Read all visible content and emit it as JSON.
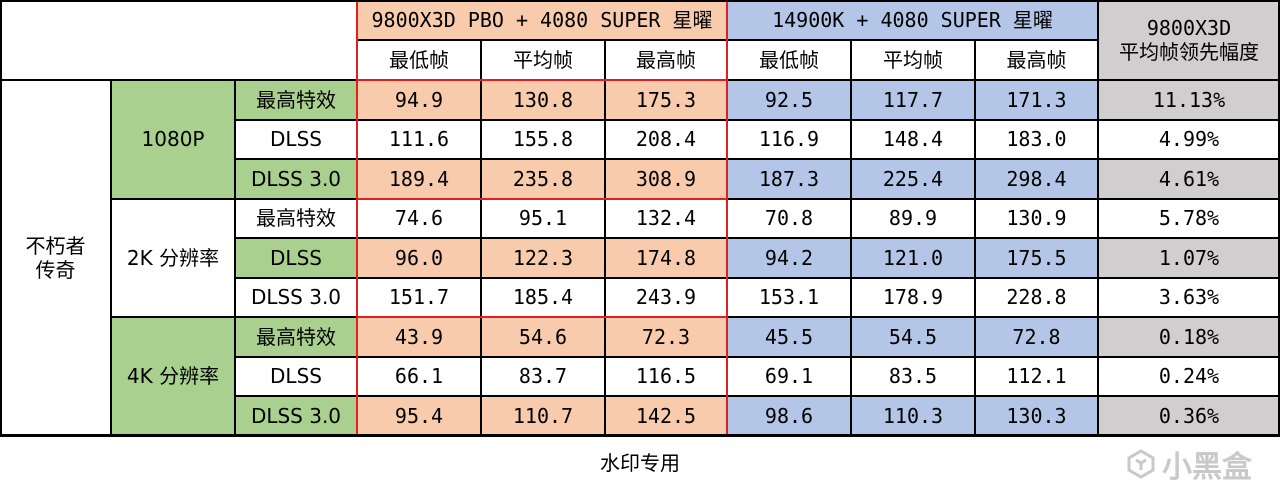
{
  "colors": {
    "pbo_fill": "#f8cbad",
    "intel_fill": "#b4c6e7",
    "lead_fill": "#d0cece",
    "res_fill": "#a9d08e",
    "border_red": "#e02020"
  },
  "chart_data": {
    "type": "table",
    "game": "不朽者\n传奇",
    "groups": [
      {
        "name": "9800X3D PBO + 4080 SUPER 星曜",
        "metrics": [
          "最低帧",
          "平均帧",
          "最高帧"
        ]
      },
      {
        "name": "14900K + 4080 SUPER 星曜",
        "metrics": [
          "最低帧",
          "平均帧",
          "最高帧"
        ]
      }
    ],
    "lead_header": "9800X3D\n平均帧领先幅度",
    "resolutions": [
      {
        "name": "1080P",
        "rows": [
          {
            "setting": "最高特效",
            "values": [
              "94.9",
              "130.8",
              "175.3",
              "92.5",
              "117.7",
              "171.3"
            ],
            "lead": "11.13%"
          },
          {
            "setting": "DLSS",
            "values": [
              "111.6",
              "155.8",
              "208.4",
              "116.9",
              "148.4",
              "183.0"
            ],
            "lead": "4.99%"
          },
          {
            "setting": "DLSS 3.0",
            "values": [
              "189.4",
              "235.8",
              "308.9",
              "187.3",
              "225.4",
              "298.4"
            ],
            "lead": "4.61%"
          }
        ]
      },
      {
        "name": "2K 分辨率",
        "rows": [
          {
            "setting": "最高特效",
            "values": [
              "74.6",
              "95.1",
              "132.4",
              "70.8",
              "89.9",
              "130.9"
            ],
            "lead": "5.78%"
          },
          {
            "setting": "DLSS",
            "values": [
              "96.0",
              "122.3",
              "174.8",
              "94.2",
              "121.0",
              "175.5"
            ],
            "lead": "1.07%"
          },
          {
            "setting": "DLSS 3.0",
            "values": [
              "151.7",
              "185.4",
              "243.9",
              "153.1",
              "178.9",
              "228.8"
            ],
            "lead": "3.63%"
          }
        ]
      },
      {
        "name": "4K 分辨率",
        "rows": [
          {
            "setting": "最高特效",
            "values": [
              "43.9",
              "54.6",
              "72.3",
              "45.5",
              "54.5",
              "72.8"
            ],
            "lead": "0.18%"
          },
          {
            "setting": "DLSS",
            "values": [
              "66.1",
              "83.7",
              "116.5",
              "69.1",
              "83.5",
              "112.1"
            ],
            "lead": "0.24%"
          },
          {
            "setting": "DLSS 3.0",
            "values": [
              "95.4",
              "110.7",
              "142.5",
              "98.6",
              "110.3",
              "130.3"
            ],
            "lead": "0.36%"
          }
        ]
      }
    ]
  },
  "footer": "水印专用",
  "watermark": "小黑盒"
}
